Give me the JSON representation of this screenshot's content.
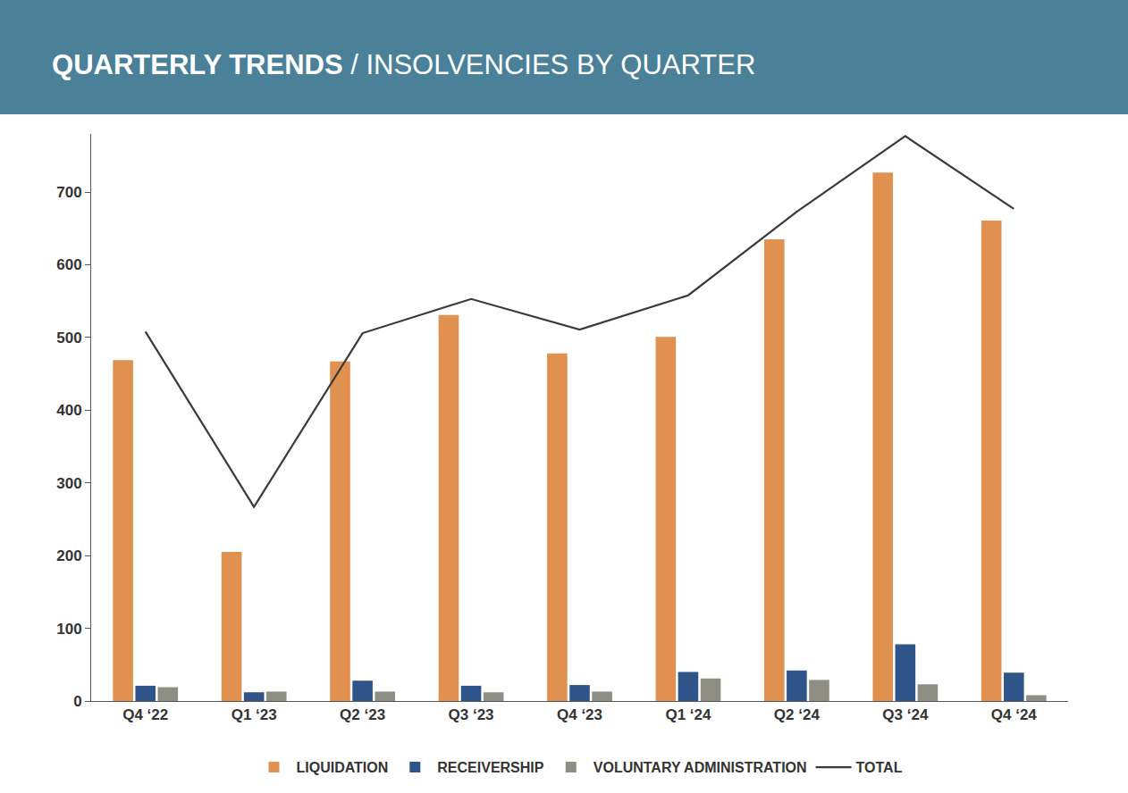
{
  "chart_data": {
    "type": "bar",
    "title": "QUARTERLY TRENDS / INSOLVENCIES BY QUARTER",
    "categories": [
      "Q4 ‘22",
      "Q1 ‘23",
      "Q2 ‘23",
      "Q3 ‘23",
      "Q4 ‘23",
      "Q1 ‘24",
      "Q2 ‘24",
      "Q3 ‘24",
      "Q4 ‘24"
    ],
    "series": [
      {
        "name": "LIQUIDATION",
        "type": "bar",
        "color": "#e09150",
        "values": [
          469,
          205,
          467,
          531,
          478,
          501,
          635,
          727,
          661
        ]
      },
      {
        "name": "RECEIVERSHIP",
        "type": "bar",
        "color": "#2e5489",
        "values": [
          21,
          12,
          28,
          21,
          22,
          40,
          42,
          78,
          39
        ]
      },
      {
        "name": "VOLUNTARY ADMINISTRATION",
        "type": "bar",
        "color": "#8e8e84",
        "values": [
          19,
          13,
          13,
          12,
          13,
          31,
          29,
          23,
          8
        ]
      },
      {
        "name": "TOTAL",
        "type": "line",
        "color": "#3a3a3a",
        "values": [
          508,
          267,
          506,
          553,
          511,
          558,
          673,
          777,
          677
        ]
      }
    ],
    "ylim": [
      0,
      780
    ],
    "yticks": [
      0,
      100,
      200,
      300,
      400,
      500,
      600,
      700
    ],
    "grid": false,
    "legend": "bottom"
  }
}
